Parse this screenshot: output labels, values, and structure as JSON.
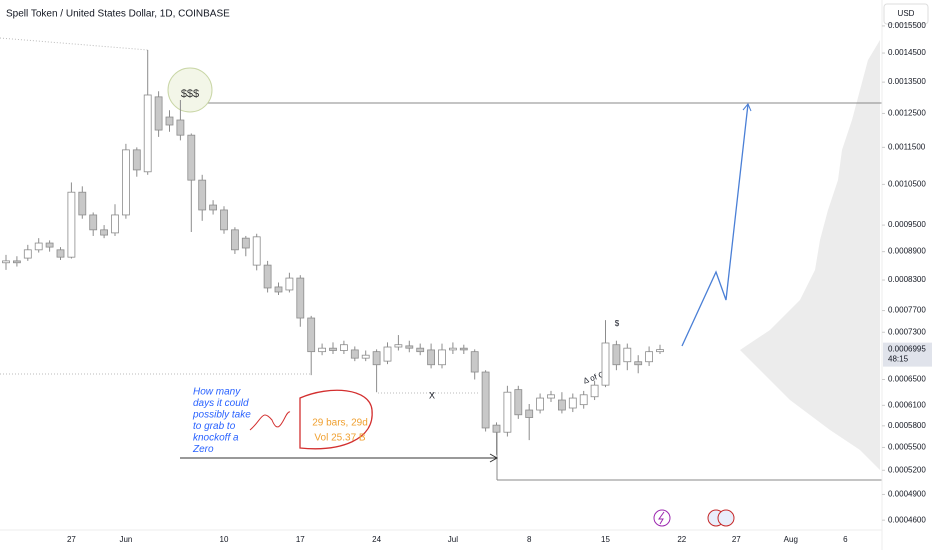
{
  "chart_data": {
    "type": "candlestick",
    "title": "Spell Token / United States Dollar, 1D, COINBASE",
    "currency": "USD",
    "log_scale": true,
    "grid": false,
    "up_color": "#ffffff",
    "down_color": "#c8c8c8",
    "edge_color": "#8c8c8c",
    "categories": [
      null,
      null,
      null,
      null,
      null,
      null,
      "27",
      null,
      null,
      null,
      null,
      "Jun",
      null,
      null,
      null,
      null,
      null,
      null,
      null,
      null,
      "10",
      null,
      null,
      null,
      null,
      null,
      null,
      "17",
      null,
      null,
      null,
      null,
      null,
      null,
      "24",
      null,
      null,
      null,
      null,
      null,
      null,
      "Jul",
      null,
      null,
      null,
      null,
      null,
      null,
      "8",
      null,
      null,
      null,
      null,
      null,
      null,
      "15",
      null,
      null,
      null,
      null,
      null,
      null,
      "22",
      null,
      null,
      null,
      null,
      "27",
      null,
      null,
      null,
      null,
      "Aug",
      null,
      null,
      null,
      null,
      "6"
    ],
    "open": [
      0.000866,
      0.00087,
      0.000876,
      0.000894,
      0.000909,
      0.000894,
      0.000878,
      0.00103,
      0.000974,
      0.000939,
      0.000932,
      0.000974,
      0.001143,
      0.001083,
      0.001302,
      0.001239,
      0.00123,
      0.001185,
      0.001061,
      0.000998,
      0.000986,
      0.000939,
      0.00092,
      0.000861,
      0.000861,
      0.000816,
      0.00081,
      0.000834,
      0.000756,
      0.000696,
      0.000702,
      0.000698,
      0.000699,
      0.000685,
      0.000696,
      0.00068,
      0.000704,
      0.000706,
      0.000702,
      0.000699,
      0.000674,
      0.000699,
      0.000702,
      0.000696,
      0.000662,
      0.000581,
      0.000571,
      0.000634,
      0.000603,
      0.000603,
      0.000621,
      0.000618,
      0.000606,
      0.000611,
      0.000623,
      0.000641,
      0.000708,
      0.000679,
      0.000679,
      0.000679,
      0.000696,
      null,
      null,
      null,
      null,
      null,
      null,
      null,
      null,
      null,
      null,
      null,
      null,
      null,
      null,
      null,
      null,
      null
    ],
    "high": [
      0.000883,
      0.00088,
      0.000905,
      0.00092,
      0.000915,
      0.0009,
      0.001055,
      0.001045,
      0.00098,
      0.00095,
      0.001,
      0.00116,
      0.00115,
      0.001461,
      0.00132,
      0.00126,
      0.001292,
      0.00119,
      0.001075,
      0.00101,
      0.000995,
      0.000945,
      0.000925,
      0.00093,
      0.00087,
      0.000825,
      0.000845,
      0.00084,
      0.00076,
      0.00071,
      0.000712,
      0.000715,
      0.000705,
      0.000698,
      0.0007,
      0.000712,
      0.000725,
      0.000715,
      0.00071,
      0.00071,
      0.00071,
      0.000712,
      0.000708,
      0.0007,
      0.000665,
      0.000585,
      0.00064,
      0.00064,
      0.000612,
      0.000628,
      0.000632,
      0.00063,
      0.000628,
      0.000632,
      0.000648,
      0.000752,
      0.000715,
      0.00071,
      0.00069,
      0.000705,
      0.000708,
      null,
      null,
      null,
      null,
      null,
      null,
      null,
      null,
      null,
      null,
      null,
      null,
      null,
      null,
      null,
      null,
      null
    ],
    "low": [
      0.000851,
      0.000858,
      0.00087,
      0.000888,
      0.00089,
      0.000872,
      0.000875,
      0.000965,
      0.000925,
      0.00092,
      0.000925,
      0.000965,
      0.00107,
      0.001075,
      0.00118,
      0.001195,
      0.00117,
      0.000934,
      0.00096,
      0.000975,
      0.00093,
      0.000885,
      0.00088,
      0.00085,
      0.000805,
      0.0008,
      0.000805,
      0.00074,
      0.000657,
      0.00069,
      0.000692,
      0.000692,
      0.00068,
      0.00068,
      0.00063,
      0.000675,
      0.000698,
      0.000695,
      0.00069,
      0.000668,
      0.000668,
      0.000692,
      0.000692,
      0.00065,
      0.000572,
      0.00054,
      0.000565,
      0.00059,
      0.00056,
      0.000598,
      0.000615,
      0.000598,
      0.0006,
      0.000605,
      0.000618,
      0.000638,
      0.000665,
      0.000665,
      0.00066,
      0.000672,
      0.000692,
      null,
      null,
      null,
      null,
      null,
      null,
      null,
      null,
      null,
      null,
      null,
      null,
      null,
      null,
      null,
      null,
      null
    ],
    "close": [
      0.00087,
      0.000866,
      0.000894,
      0.000909,
      0.0009,
      0.000878,
      0.00103,
      0.000974,
      0.000939,
      0.000927,
      0.000974,
      0.001143,
      0.001088,
      0.001308,
      0.0012,
      0.001215,
      0.001185,
      0.001061,
      0.000986,
      0.000986,
      0.000939,
      0.000894,
      0.000898,
      0.000923,
      0.000814,
      0.000806,
      0.000834,
      0.000756,
      0.000696,
      0.000702,
      0.000698,
      0.000708,
      0.000685,
      0.00069,
      0.000674,
      0.000704,
      0.000708,
      0.000702,
      0.000696,
      0.000674,
      0.000699,
      0.000702,
      0.000699,
      0.000662,
      0.000577,
      0.000571,
      0.00063,
      0.000596,
      0.000592,
      0.000621,
      0.000626,
      0.000603,
      0.000621,
      0.000626,
      0.000641,
      0.000711,
      0.000674,
      0.000702,
      0.000674,
      0.000696,
      0.0006995,
      null,
      null,
      null,
      null,
      null,
      null,
      null,
      null,
      null,
      null,
      null,
      null,
      null,
      null,
      null,
      null,
      null
    ],
    "ylim": [
      0.000449,
      0.001652
    ],
    "yticks": [
      {
        "value": 0.00155,
        "label": "0.0015500"
      },
      {
        "value": 0.00145,
        "label": "0.0014500"
      },
      {
        "value": 0.00135,
        "label": "0.0013500"
      },
      {
        "value": 0.00125,
        "label": "0.0012500"
      },
      {
        "value": 0.00115,
        "label": "0.0011500"
      },
      {
        "value": 0.00105,
        "label": "0.0010500"
      },
      {
        "value": 0.00095,
        "label": "0.0009500"
      },
      {
        "value": 0.00089,
        "label": "0.0008900"
      },
      {
        "value": 0.00083,
        "label": "0.0008300"
      },
      {
        "value": 0.00077,
        "label": "0.0007700"
      },
      {
        "value": 0.00073,
        "label": "0.0007300"
      },
      {
        "value": 0.00065,
        "label": "0.0006500"
      },
      {
        "value": 0.00061,
        "label": "0.0006100"
      },
      {
        "value": 0.00058,
        "label": "0.0005800"
      },
      {
        "value": 0.00055,
        "label": "0.0005500"
      },
      {
        "value": 0.00052,
        "label": "0.0005200"
      },
      {
        "value": 0.00049,
        "label": "0.0004900"
      },
      {
        "value": 0.00046,
        "label": "0.0004600"
      }
    ],
    "last_price": {
      "value": 0.0006995,
      "label": "0.0006995"
    },
    "countdown": "48:15",
    "annotations": {
      "dollars": "$$$",
      "x_mark": "X",
      "delta": "Δ of C",
      "dollar": "$",
      "question": [
        "How many",
        "days it could",
        "possibly take",
        "to grab to",
        "knockoff a",
        "Zero"
      ],
      "bars": "29 bars, 29d",
      "volume": "Vol 25.37 B"
    }
  }
}
